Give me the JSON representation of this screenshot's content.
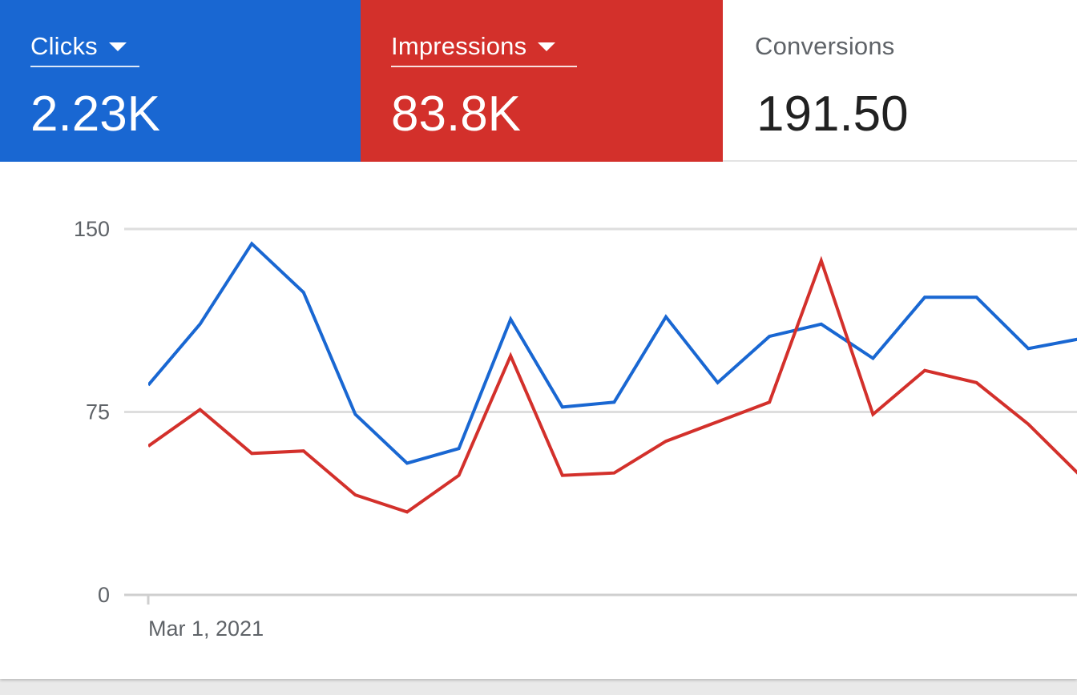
{
  "metrics": [
    {
      "label": "Clicks",
      "value": "2.23K",
      "color": "#1967d2",
      "has_dropdown": true
    },
    {
      "label": "Impressions",
      "value": "83.8K",
      "color": "#d3302b",
      "has_dropdown": true
    },
    {
      "label": "Conversions",
      "value": "191.50",
      "color": "#ffffff",
      "has_dropdown": false
    }
  ],
  "chart_data": {
    "type": "line",
    "title": "",
    "xlabel": "",
    "ylabel": "",
    "x_tick_labels": [
      "Mar 1, 2021"
    ],
    "y_ticks": [
      0,
      75,
      150
    ],
    "ylim": [
      0,
      150
    ],
    "grid": true,
    "legend": "none",
    "series": [
      {
        "color": "#1967d2",
        "values": [
          86,
          111,
          144,
          124,
          74,
          54,
          60,
          113,
          77,
          79,
          114,
          87,
          106,
          111,
          97,
          122,
          122,
          101,
          105
        ]
      },
      {
        "color": "#d3302b",
        "values": [
          61,
          76,
          58,
          59,
          41,
          34,
          49,
          98,
          49,
          50,
          63,
          71,
          79,
          137,
          74,
          92,
          87,
          70,
          49
        ]
      }
    ]
  }
}
